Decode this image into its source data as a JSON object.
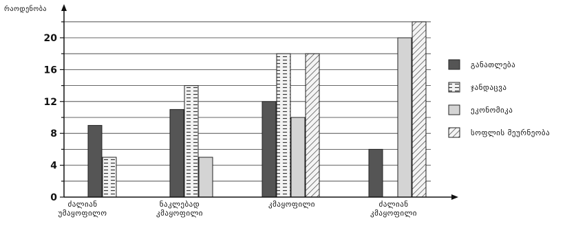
{
  "chart_data": {
    "type": "bar",
    "ylabel": "რაოდენობა",
    "xlabel": "",
    "ylim": [
      0,
      22.5
    ],
    "yticks": [
      0,
      4,
      8,
      12,
      16,
      20
    ],
    "grid": true,
    "legend": "right",
    "categories": [
      [
        "ძალიან",
        "უმაყოფილო"
      ],
      [
        "ნაკლებად",
        "კმაყოფილი"
      ],
      [
        "კმაყოფილი"
      ],
      [
        "ძალიან",
        "კმაყოფილი"
      ]
    ],
    "series": [
      {
        "name": "განათლება",
        "style": "solid-dark",
        "values": [
          9,
          11,
          12,
          6
        ]
      },
      {
        "name": "ჯანდაცვა",
        "style": "dashed-light",
        "values": [
          5,
          14,
          18,
          null
        ]
      },
      {
        "name": "ეკონომიკა",
        "style": "solid-light",
        "values": [
          null,
          5,
          10,
          20
        ]
      },
      {
        "name": "სოფლის მეურნეობა",
        "style": "hatched",
        "values": [
          null,
          null,
          18,
          22
        ]
      }
    ],
    "colors": {
      "dark": "#555555",
      "light": "#d4d4d4",
      "hatch_bg": "#f4f4f4",
      "stroke": "#222222"
    }
  }
}
